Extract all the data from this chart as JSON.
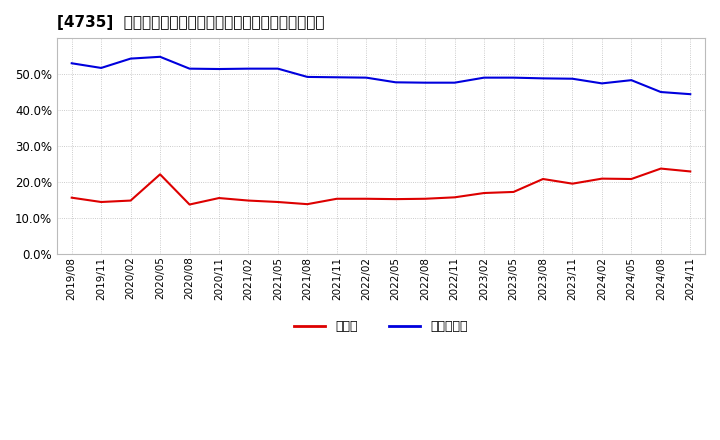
{
  "title": "[4735]  現預金、有利子負債の総資産に対する比率の推移",
  "x_labels": [
    "2019/08",
    "2019/11",
    "2020/02",
    "2020/05",
    "2020/08",
    "2020/11",
    "2021/02",
    "2021/05",
    "2021/08",
    "2021/11",
    "2022/02",
    "2022/05",
    "2022/08",
    "2022/11",
    "2023/02",
    "2023/05",
    "2023/08",
    "2023/11",
    "2024/02",
    "2024/05",
    "2024/08",
    "2024/11"
  ],
  "cash": [
    0.156,
    0.144,
    0.148,
    0.221,
    0.137,
    0.155,
    0.148,
    0.144,
    0.138,
    0.153,
    0.153,
    0.152,
    0.153,
    0.157,
    0.169,
    0.172,
    0.208,
    0.195,
    0.209,
    0.208,
    0.237,
    0.229
  ],
  "debt": [
    0.53,
    0.517,
    0.543,
    0.548,
    0.515,
    0.514,
    0.515,
    0.515,
    0.492,
    0.491,
    0.49,
    0.477,
    0.476,
    0.476,
    0.49,
    0.49,
    0.488,
    0.487,
    0.474,
    0.483,
    0.45,
    0.444
  ],
  "cash_color": "#dd0000",
  "debt_color": "#0000dd",
  "background_color": "#ffffff",
  "plot_bg_color": "#ffffff",
  "grid_color": "#bbbbbb",
  "legend_cash": "現預金",
  "legend_debt": "有利子負債",
  "ylim": [
    0.0,
    0.6
  ],
  "yticks": [
    0.0,
    0.1,
    0.2,
    0.3,
    0.4,
    0.5
  ],
  "title_fontsize": 11,
  "legend_fontsize": 9,
  "tick_fontsize": 7.5,
  "ytick_fontsize": 8.5
}
